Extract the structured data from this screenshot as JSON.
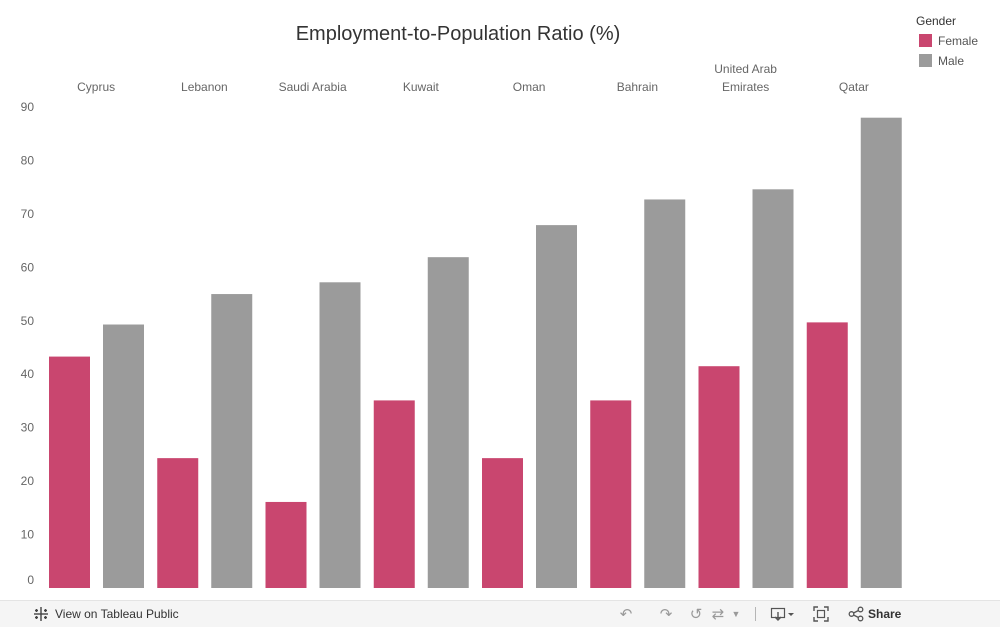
{
  "chart_data": {
    "type": "bar",
    "title": "Employment-to-Population Ratio (%)",
    "categories": [
      "Cyprus",
      "Lebanon",
      "Saudi Arabia",
      "Kuwait",
      "Oman",
      "Bahrain",
      "United Arab Emirates",
      "Qatar"
    ],
    "series": [
      {
        "name": "Female",
        "color": "#c9466f",
        "values": [
          43.3,
          24.3,
          16.1,
          35.1,
          24.3,
          35.1,
          41.5,
          49.7
        ]
      },
      {
        "name": "Male",
        "color": "#9b9b9b",
        "values": [
          49.3,
          55.0,
          57.2,
          61.9,
          67.9,
          72.7,
          74.6,
          88.0
        ]
      }
    ],
    "ylim": [
      0,
      90
    ],
    "yticks": [
      0,
      10,
      20,
      30,
      40,
      50,
      60,
      70,
      80,
      90
    ],
    "ylabel": "",
    "xlabel": "",
    "grid": false,
    "legend": {
      "title": "Gender",
      "position": "top-right"
    }
  },
  "toolbar": {
    "view_label": "View on Tableau Public",
    "share_label": "Share"
  },
  "icons": {
    "tableau": "tableau-logo-icon",
    "undo": "undo-icon",
    "redo": "redo-icon",
    "revert": "revert-icon",
    "refresh": "refresh-icon",
    "download": "download-icon",
    "fullscreen": "fullscreen-icon",
    "share": "share-icon"
  }
}
